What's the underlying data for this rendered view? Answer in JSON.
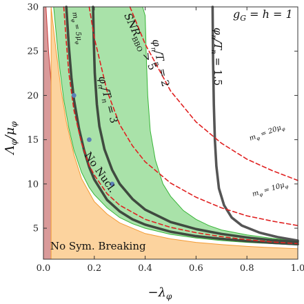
{
  "chart_data": {
    "type": "area",
    "xlabel": "−λ_φ",
    "ylabel": "Λ_φ/μ_φ",
    "xlim": [
      0.0,
      1.0
    ],
    "ylim": [
      1.5,
      30
    ],
    "x_ticks": [
      0.0,
      0.2,
      0.4,
      0.6,
      0.8,
      1.0
    ],
    "x_tick_labels": [
      "0.0",
      "0.2",
      "0.4",
      "0.6",
      "0.8",
      "1.0"
    ],
    "y_ticks": [
      5,
      10,
      15,
      20,
      25,
      30
    ],
    "y_tick_labels": [
      "5",
      "10",
      "15",
      "20",
      "25",
      "30"
    ],
    "grid": false,
    "regions": [
      {
        "name": "No Sym. Breaking",
        "fill": "#d99a9a",
        "edge": "#c83a3a",
        "upper": [
          [
            0.0,
            30
          ],
          [
            0.01,
            30
          ],
          [
            0.02,
            25
          ],
          [
            0.04,
            18
          ],
          [
            0.06,
            13
          ],
          [
            0.08,
            10
          ],
          [
            0.1,
            8.3
          ],
          [
            0.15,
            6.2
          ],
          [
            0.2,
            5.1
          ],
          [
            0.3,
            3.95
          ],
          [
            0.4,
            3.4
          ],
          [
            0.5,
            3.05
          ],
          [
            0.6,
            2.8
          ],
          [
            0.7,
            2.62
          ],
          [
            0.8,
            2.48
          ],
          [
            0.9,
            2.36
          ],
          [
            1.0,
            2.28
          ]
        ]
      },
      {
        "name": "No Nucl.",
        "fill": "#fcd39e",
        "edge": "#f39a32",
        "upper": [
          [
            0.03,
            30
          ],
          [
            0.05,
            25
          ],
          [
            0.07,
            20.5
          ],
          [
            0.09,
            17
          ],
          [
            0.12,
            13.3
          ],
          [
            0.15,
            10.6
          ],
          [
            0.2,
            8.0
          ],
          [
            0.25,
            6.6
          ],
          [
            0.3,
            5.6
          ],
          [
            0.4,
            4.4
          ],
          [
            0.5,
            3.8
          ],
          [
            0.6,
            3.4
          ],
          [
            0.7,
            3.15
          ],
          [
            0.8,
            2.95
          ],
          [
            0.9,
            2.8
          ],
          [
            1.0,
            2.68
          ]
        ]
      },
      {
        "name": "SNR_BBO > 5",
        "fill": "#a9e2a9",
        "edge": "#36b436",
        "upper": [
          [
            0.39,
            30
          ],
          [
            0.4,
            29
          ],
          [
            0.405,
            24
          ],
          [
            0.41,
            20
          ],
          [
            0.42,
            16
          ],
          [
            0.44,
            12.7
          ],
          [
            0.47,
            10
          ],
          [
            0.5,
            8.6
          ],
          [
            0.55,
            7.0
          ],
          [
            0.6,
            6.0
          ],
          [
            0.65,
            5.3
          ],
          [
            0.7,
            4.8
          ],
          [
            0.8,
            4.25
          ],
          [
            0.9,
            3.85
          ],
          [
            1.0,
            3.55
          ]
        ],
        "lower": [
          [
            0.04,
            30
          ],
          [
            0.06,
            24
          ],
          [
            0.08,
            19.5
          ],
          [
            0.1,
            16.3
          ],
          [
            0.12,
            13.8
          ],
          [
            0.15,
            11.3
          ],
          [
            0.18,
            9.6
          ],
          [
            0.2,
            8.8
          ],
          [
            0.25,
            7.3
          ],
          [
            0.3,
            6.2
          ],
          [
            0.35,
            5.5
          ],
          [
            0.4,
            5.0
          ],
          [
            0.5,
            4.3
          ],
          [
            0.6,
            3.9
          ],
          [
            0.7,
            3.6
          ],
          [
            0.8,
            3.4
          ],
          [
            0.9,
            3.25
          ],
          [
            1.0,
            3.1
          ]
        ]
      }
    ],
    "series": [
      {
        "name": "φ_n/T_n = 1.5",
        "color": "#555555",
        "points": [
          [
            0.665,
            30
          ],
          [
            0.667,
            24
          ],
          [
            0.67,
            19
          ],
          [
            0.674,
            15
          ],
          [
            0.68,
            12
          ],
          [
            0.69,
            9.5
          ],
          [
            0.71,
            7.6
          ],
          [
            0.74,
            6.2
          ],
          [
            0.78,
            5.3
          ],
          [
            0.85,
            4.5
          ],
          [
            0.92,
            4.0
          ],
          [
            1.0,
            3.6
          ]
        ]
      },
      {
        "name": "φ_n/T_n = 2",
        "color": "#3f4a3f",
        "points": [
          [
            0.195,
            30
          ],
          [
            0.198,
            26
          ],
          [
            0.202,
            22.5
          ],
          [
            0.21,
            19
          ],
          [
            0.22,
            16.5
          ],
          [
            0.24,
            13.9
          ],
          [
            0.27,
            11.6
          ],
          [
            0.3,
            10
          ],
          [
            0.35,
            8.3
          ],
          [
            0.4,
            7.1
          ],
          [
            0.5,
            5.7
          ],
          [
            0.6,
            4.9
          ],
          [
            0.7,
            4.35
          ],
          [
            0.8,
            3.95
          ],
          [
            0.9,
            3.65
          ],
          [
            1.0,
            3.45
          ]
        ]
      },
      {
        "name": "φ_n/T_n = 3",
        "color": "#3f4a3f",
        "points": [
          [
            0.09,
            30
          ],
          [
            0.1,
            25.5
          ],
          [
            0.11,
            22
          ],
          [
            0.12,
            19.5
          ],
          [
            0.14,
            16.2
          ],
          [
            0.16,
            13.8
          ],
          [
            0.18,
            11.9
          ],
          [
            0.2,
            10.5
          ],
          [
            0.25,
            8.2
          ],
          [
            0.3,
            6.9
          ],
          [
            0.35,
            6.0
          ],
          [
            0.4,
            5.4
          ],
          [
            0.5,
            4.6
          ],
          [
            0.6,
            4.1
          ],
          [
            0.7,
            3.8
          ],
          [
            0.8,
            3.55
          ],
          [
            0.9,
            3.35
          ],
          [
            1.0,
            3.2
          ]
        ]
      },
      {
        "name": "m_φ = 5μ_φ",
        "color": "#e02020",
        "dashed": true,
        "points": [
          [
            0.08,
            30
          ],
          [
            0.09,
            26
          ],
          [
            0.1,
            22.5
          ],
          [
            0.12,
            18.3
          ],
          [
            0.15,
            14.6
          ],
          [
            0.18,
            12.1
          ],
          [
            0.2,
            11.0
          ],
          [
            0.25,
            8.9
          ],
          [
            0.3,
            7.6
          ],
          [
            0.4,
            6.0
          ],
          [
            0.5,
            5.1
          ],
          [
            0.6,
            4.5
          ],
          [
            0.7,
            4.05
          ],
          [
            0.8,
            3.7
          ],
          [
            0.9,
            3.45
          ],
          [
            1.0,
            3.25
          ]
        ]
      },
      {
        "name": "m_φ = 10μ_φ",
        "color": "#e02020",
        "dashed": true,
        "points": [
          [
            0.18,
            30
          ],
          [
            0.2,
            26.5
          ],
          [
            0.25,
            20.5
          ],
          [
            0.3,
            16.7
          ],
          [
            0.35,
            14.3
          ],
          [
            0.4,
            12.5
          ],
          [
            0.5,
            10.1
          ],
          [
            0.6,
            8.5
          ],
          [
            0.7,
            7.3
          ],
          [
            0.8,
            6.4
          ],
          [
            0.9,
            5.8
          ],
          [
            1.0,
            5.3
          ]
        ]
      },
      {
        "name": "m_φ = 20μ_φ",
        "color": "#e02020",
        "dashed": true,
        "points": [
          [
            0.34,
            30
          ],
          [
            0.4,
            25.8
          ],
          [
            0.5,
            20.5
          ],
          [
            0.6,
            17.0
          ],
          [
            0.7,
            14.6
          ],
          [
            0.8,
            12.8
          ],
          [
            0.9,
            11.5
          ],
          [
            1.0,
            10.4
          ]
        ]
      }
    ],
    "markers": {
      "color": "#5b7fb8",
      "points": [
        [
          0.12,
          20
        ],
        [
          0.18,
          15
        ],
        [
          0.27,
          10
        ]
      ]
    },
    "annotations": [
      {
        "id": "gg",
        "text": "g_G = h = 1"
      },
      {
        "id": "snr",
        "text": "SNR_BBO > 5"
      },
      {
        "id": "phi2",
        "text": "φ_n/T_n = 2"
      },
      {
        "id": "phi3",
        "text": "φ_n/T_n = 3"
      },
      {
        "id": "phi15",
        "text": "φ_n/T_n = 1.5"
      },
      {
        "id": "m5",
        "text": "m_φ = 5μ_φ"
      },
      {
        "id": "m10",
        "text": "m_φ = 10μ_φ"
      },
      {
        "id": "m20",
        "text": "m_φ = 20μ_φ"
      },
      {
        "id": "nonucl",
        "text": "No Nucl."
      },
      {
        "id": "nosym",
        "text": "No Sym. Breaking"
      }
    ]
  }
}
